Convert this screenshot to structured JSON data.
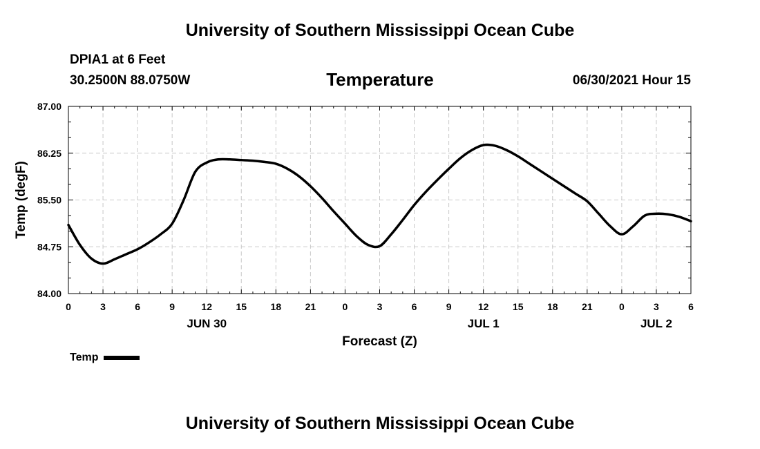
{
  "header": {
    "title": "University of Southern Mississippi Ocean Cube",
    "station_name": "DPIA1 at 6 Feet",
    "station_coords": "30.2500N  88.0750W",
    "chart_title": "Temperature",
    "datetime": "06/30/2021 Hour 15"
  },
  "footer": {
    "title": "University of Southern Mississippi Ocean Cube"
  },
  "legend": {
    "label": "Temp"
  },
  "chart_data": {
    "type": "line",
    "title": "Temperature",
    "xlabel": "Forecast (Z)",
    "ylabel": "Temp (degF)",
    "ylim": [
      84.0,
      87.0
    ],
    "xlim": [
      0,
      54
    ],
    "yticks": [
      "84.00",
      "84.75",
      "85.50",
      "86.25",
      "87.00"
    ],
    "ytick_values": [
      84.0,
      84.75,
      85.5,
      86.25,
      87.0
    ],
    "xtick_values": [
      0,
      3,
      6,
      9,
      12,
      15,
      18,
      21,
      24,
      27,
      30,
      33,
      36,
      39,
      42,
      45,
      48,
      51,
      54
    ],
    "xtick_labels": [
      "0",
      "3",
      "6",
      "9",
      "12",
      "15",
      "18",
      "21",
      "0",
      "3",
      "6",
      "9",
      "12",
      "15",
      "18",
      "21",
      "0",
      "3",
      "6"
    ],
    "date_labels": [
      {
        "x": 12,
        "label": "JUN 30"
      },
      {
        "x": 36,
        "label": "JUL 1"
      },
      {
        "x": 51,
        "label": "JUL 2"
      }
    ],
    "grid": true,
    "color": "#000000",
    "series": [
      {
        "name": "Temp",
        "x": [
          0,
          1,
          2,
          3,
          4,
          5,
          6,
          7,
          8,
          9,
          10,
          11,
          12,
          13,
          14,
          15,
          16,
          17,
          18,
          19,
          20,
          21,
          22,
          23,
          24,
          25,
          26,
          27,
          28,
          29,
          30,
          31,
          32,
          33,
          34,
          35,
          36,
          37,
          38,
          39,
          40,
          41,
          42,
          43,
          44,
          45,
          46,
          47,
          48,
          49,
          50,
          51,
          52,
          53,
          54
        ],
        "y": [
          85.1,
          84.78,
          84.56,
          84.48,
          84.55,
          84.63,
          84.71,
          84.82,
          84.95,
          85.12,
          85.5,
          85.95,
          86.1,
          86.15,
          86.15,
          86.14,
          86.13,
          86.11,
          86.08,
          86.0,
          85.88,
          85.72,
          85.53,
          85.32,
          85.12,
          84.92,
          84.78,
          84.76,
          84.95,
          85.18,
          85.42,
          85.63,
          85.82,
          86.0,
          86.17,
          86.3,
          86.38,
          86.37,
          86.3,
          86.2,
          86.08,
          85.96,
          85.84,
          85.72,
          85.6,
          85.48,
          85.28,
          85.08,
          84.95,
          85.08,
          85.25,
          85.28,
          85.27,
          85.23,
          85.16
        ]
      }
    ]
  }
}
